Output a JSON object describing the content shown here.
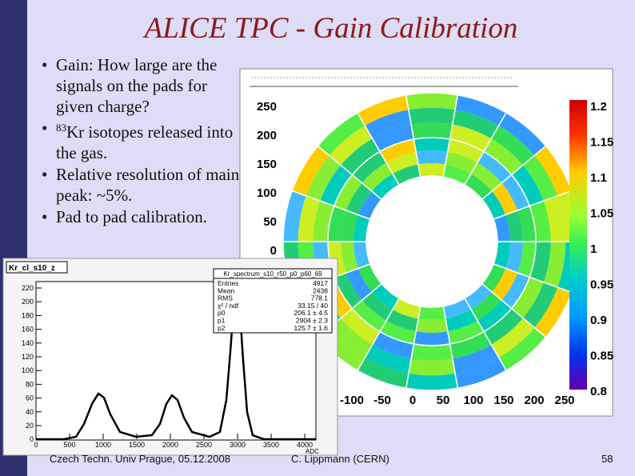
{
  "title": "ALICE TPC - Gain Calibration",
  "bullets": [
    {
      "text": "Gain: How large are the signals on the pads for given charge?"
    },
    {
      "sup": "83",
      "text": "Kr isotopes released into the gas."
    },
    {
      "text": "Relative resolution of main peak: ~5%."
    },
    {
      "text": "Pad to pad calibration."
    }
  ],
  "gain_map": {
    "yticks": [
      "250",
      "200",
      "150",
      "100",
      "50",
      "0"
    ],
    "xticks": [
      "-100",
      "-50",
      "0",
      "50",
      "100",
      "150",
      "200",
      "250"
    ],
    "colorbar_ticks": [
      "1.2",
      "1.15",
      "1.1",
      "1.05",
      "1",
      "0.95",
      "0.9",
      "0.85",
      "0.8"
    ]
  },
  "spectrum": {
    "title": "Kr_cl_s10_z",
    "stats_title": "Kr_spectrum_s10_r50_p0_p60_69",
    "stats": [
      [
        "Entries",
        "4917"
      ],
      [
        "Mean",
        "2438"
      ],
      [
        "RMS",
        "778.1"
      ],
      [
        "χ² / ndf",
        "33.15 / 40"
      ],
      [
        "p0",
        "206.1 ± 4.5"
      ],
      [
        "p1",
        "2904 ± 2.3"
      ],
      [
        "p2",
        "125.7 ± 1.6"
      ]
    ],
    "yticks": [
      "220",
      "200",
      "180",
      "160",
      "140",
      "120",
      "100",
      "80",
      "60",
      "40",
      "20",
      "0"
    ],
    "xticks": [
      "0",
      "500",
      "1000",
      "1500",
      "2000",
      "2500",
      "3000",
      "3500",
      "4000"
    ],
    "xlabel": "ADC"
  },
  "footer": {
    "left": "Czech Techn. Univ Prague, 05.12.2008",
    "center": "C. Lippmann (CERN)",
    "page": "58"
  }
}
